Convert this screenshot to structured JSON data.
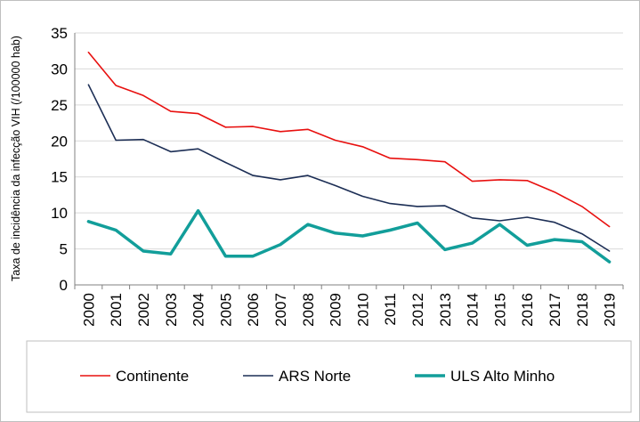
{
  "chart_data": {
    "type": "line",
    "title": "",
    "xlabel": "",
    "ylabel": "Taxa de incidência da infecção VIH (/100000 hab)",
    "ylim": [
      0,
      35
    ],
    "yticks": [
      0,
      5,
      10,
      15,
      20,
      25,
      30,
      35
    ],
    "grid": "horizontal",
    "legend_position": "bottom",
    "x": [
      "2000",
      "2001",
      "2002",
      "2003",
      "2004",
      "2005",
      "2006",
      "2007",
      "2008",
      "2009",
      "2010",
      "2011",
      "2012",
      "2013",
      "2014",
      "2015",
      "2016",
      "2017",
      "2018",
      "2019"
    ],
    "series": [
      {
        "name": "Continente",
        "color": "#e8100f",
        "values": [
          32.3,
          27.7,
          26.3,
          24.1,
          23.8,
          21.9,
          22.0,
          21.3,
          21.6,
          20.1,
          19.2,
          17.6,
          17.4,
          17.1,
          14.4,
          14.6,
          14.5,
          12.9,
          10.9,
          8.1
        ]
      },
      {
        "name": "ARS Norte",
        "color": "#1c2e55",
        "values": [
          27.8,
          20.1,
          20.2,
          18.5,
          18.9,
          17.0,
          15.2,
          14.6,
          15.2,
          13.8,
          12.3,
          11.3,
          10.9,
          11.0,
          9.3,
          8.9,
          9.4,
          8.7,
          7.1,
          4.7
        ]
      },
      {
        "name": "ULS Alto Minho",
        "color": "#129e9a",
        "values": [
          8.8,
          7.6,
          4.7,
          4.3,
          10.3,
          4.0,
          4.0,
          5.6,
          8.4,
          7.2,
          6.8,
          7.6,
          8.6,
          4.9,
          5.8,
          8.4,
          5.5,
          6.3,
          6.0,
          3.2
        ]
      }
    ]
  }
}
